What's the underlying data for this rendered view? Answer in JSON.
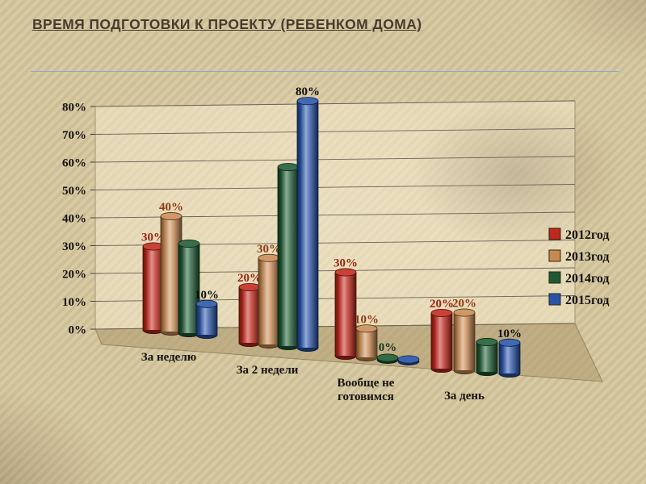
{
  "slide": {
    "title": "ВРЕМЯ ПОДГОТОВКИ К ПРОЕКТУ (РЕБЕНКОМ ДОМА)"
  },
  "colors": {
    "background": "#d4c6a0",
    "title_text": "#463c30",
    "divider": "#8fa5cd",
    "axis_text": "#15120e"
  },
  "chart_data": {
    "type": "bar",
    "subtype": "3d-cylinder",
    "categories": [
      "За неделю",
      "За 2 недели",
      "Вообще не готовимся",
      "За день"
    ],
    "series": [
      {
        "name": "2012год",
        "color": "#c1271b",
        "label_color": "#9b2413",
        "values": [
          30,
          20,
          30,
          20
        ],
        "labels": [
          "30%",
          "20%",
          "30%",
          "20%"
        ]
      },
      {
        "name": "2013год",
        "color": "#c98a50",
        "label_color": "#8f3a14",
        "values": [
          40,
          30,
          10,
          20
        ],
        "labels": [
          "40%",
          "30%",
          "10%",
          "20%"
        ]
      },
      {
        "name": "2014год",
        "color": "#1d5a33",
        "label_color": "#143322",
        "values": [
          30,
          60,
          0,
          10
        ],
        "labels": [
          null,
          null,
          "0%",
          null
        ]
      },
      {
        "name": "2015год",
        "color": "#2853a8",
        "label_color": "#0d0d0d",
        "values": [
          10,
          80,
          0,
          10
        ],
        "labels": [
          "10%",
          "80%",
          null,
          "10%"
        ]
      }
    ],
    "y_ticks": [
      "0%",
      "10%",
      "20%",
      "30%",
      "40%",
      "50%",
      "60%",
      "70%",
      "80%"
    ],
    "ylim": [
      0,
      80
    ],
    "grid": true,
    "legend_position": "right"
  }
}
